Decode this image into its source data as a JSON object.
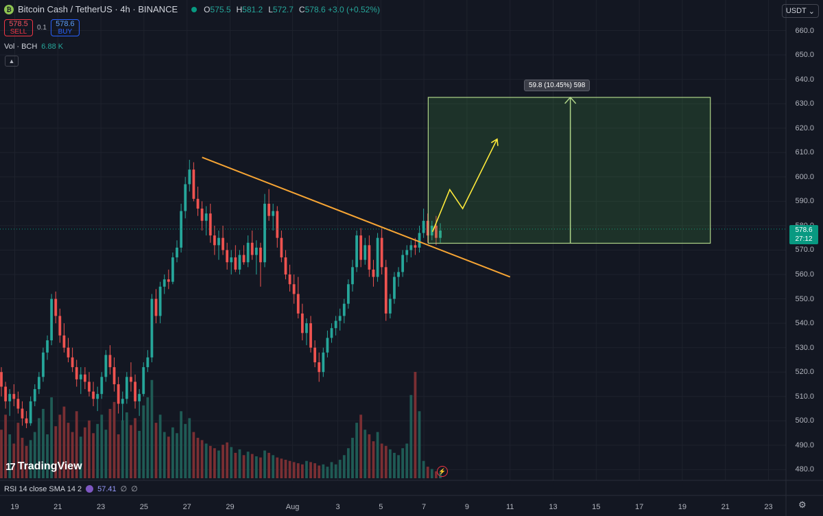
{
  "header": {
    "symbol": "Bitcoin Cash / TetherUS · 4h · BINANCE",
    "ohlc": [
      {
        "k": "O",
        "v": "575.5"
      },
      {
        "k": "H",
        "v": "581.2"
      },
      {
        "k": "L",
        "v": "572.7"
      },
      {
        "k": "C",
        "v": "578.6 +3.0 (+0.52%)"
      }
    ]
  },
  "trade": {
    "sell_price": "578.5",
    "sell_label": "SELL",
    "spread": "0.1",
    "buy_price": "578.6",
    "buy_label": "BUY"
  },
  "volume": {
    "label": "Vol · BCH",
    "value": "6.88 K"
  },
  "currency": "USDT",
  "price_tag": {
    "price": "578.6",
    "countdown": "27:12"
  },
  "measure_label": "59.8 (10.45%) 598",
  "rsi": {
    "label": "RSI 14 close SMA 14 2",
    "value": "57.41",
    "na1": "∅",
    "na2": "∅"
  },
  "brand": "TradingView",
  "colors": {
    "up": "#26a69a",
    "down": "#ef5350",
    "trendline": "#f7a534",
    "target_zone": "#b0d589",
    "projection": "#ffeb3b",
    "background": "#131722"
  },
  "chart_data": {
    "type": "candlestick",
    "title": "Bitcoin Cash / TetherUS · 4h · BINANCE",
    "y_axis": {
      "labels": [
        "660.0",
        "650.0",
        "640.0",
        "630.0",
        "620.0",
        "610.0",
        "600.0",
        "590.0",
        "580.0",
        "570.0",
        "560.0",
        "550.0",
        "540.0",
        "530.0",
        "520.0",
        "510.0",
        "500.0",
        "490.0",
        "480.0"
      ],
      "range": [
        478,
        664
      ]
    },
    "x_axis": {
      "labels": [
        "19",
        "21",
        "23",
        "25",
        "27",
        "29",
        "Aug",
        "3",
        "5",
        "7",
        "9",
        "11",
        "13",
        "15",
        "17",
        "19",
        "21",
        "23"
      ]
    },
    "candles": [
      [
        520,
        522,
        510,
        514
      ],
      [
        514,
        516,
        505,
        508
      ],
      [
        508,
        513,
        502,
        511
      ],
      [
        511,
        515,
        506,
        509
      ],
      [
        509,
        512,
        503,
        505
      ],
      [
        505,
        508,
        498,
        501
      ],
      [
        501,
        504,
        497,
        499
      ],
      [
        499,
        510,
        498,
        508
      ],
      [
        508,
        515,
        506,
        513
      ],
      [
        513,
        520,
        511,
        518
      ],
      [
        518,
        530,
        516,
        528
      ],
      [
        528,
        535,
        525,
        533
      ],
      [
        533,
        552,
        531,
        550
      ],
      [
        550,
        553,
        540,
        543
      ],
      [
        543,
        546,
        532,
        535
      ],
      [
        535,
        540,
        528,
        530
      ],
      [
        530,
        534,
        524,
        526
      ],
      [
        526,
        530,
        520,
        522
      ],
      [
        522,
        525,
        514,
        517
      ],
      [
        517,
        522,
        511,
        519
      ],
      [
        519,
        522,
        513,
        516
      ],
      [
        516,
        520,
        510,
        512
      ],
      [
        512,
        516,
        506,
        509
      ],
      [
        509,
        514,
        504,
        511
      ],
      [
        511,
        520,
        509,
        518
      ],
      [
        518,
        529,
        516,
        527
      ],
      [
        527,
        531,
        519,
        522
      ],
      [
        522,
        526,
        512,
        515
      ],
      [
        515,
        518,
        503,
        507
      ],
      [
        507,
        512,
        500,
        509
      ],
      [
        509,
        520,
        507,
        518
      ],
      [
        518,
        524,
        512,
        516
      ],
      [
        516,
        519,
        505,
        508
      ],
      [
        508,
        513,
        502,
        511
      ],
      [
        511,
        524,
        510,
        522
      ],
      [
        522,
        529,
        520,
        526
      ],
      [
        526,
        552,
        524,
        550
      ],
      [
        550,
        554,
        540,
        543
      ],
      [
        543,
        557,
        540,
        555
      ],
      [
        555,
        560,
        552,
        558
      ],
      [
        558,
        562,
        554,
        557
      ],
      [
        557,
        569,
        556,
        567
      ],
      [
        567,
        574,
        565,
        571
      ],
      [
        571,
        589,
        569,
        586
      ],
      [
        586,
        600,
        583,
        597
      ],
      [
        597,
        607,
        594,
        603
      ],
      [
        603,
        606,
        590,
        591
      ],
      [
        591,
        596,
        584,
        587
      ],
      [
        587,
        590,
        578,
        582
      ],
      [
        582,
        588,
        576,
        585
      ],
      [
        585,
        589,
        573,
        576
      ],
      [
        576,
        580,
        568,
        572
      ],
      [
        572,
        578,
        566,
        575
      ],
      [
        575,
        580,
        568,
        570
      ],
      [
        570,
        573,
        562,
        565
      ],
      [
        565,
        570,
        560,
        567
      ],
      [
        567,
        572,
        561,
        562
      ],
      [
        562,
        570,
        560,
        568
      ],
      [
        568,
        572,
        564,
        565
      ],
      [
        565,
        576,
        563,
        573
      ],
      [
        573,
        578,
        566,
        568
      ],
      [
        568,
        574,
        560,
        571
      ],
      [
        571,
        573,
        555,
        565
      ],
      [
        565,
        593,
        563,
        589
      ],
      [
        589,
        595,
        582,
        584
      ],
      [
        584,
        589,
        578,
        586
      ],
      [
        586,
        588,
        571,
        575
      ],
      [
        575,
        578,
        565,
        567
      ],
      [
        567,
        570,
        558,
        560
      ],
      [
        560,
        564,
        553,
        556
      ],
      [
        556,
        560,
        548,
        552
      ],
      [
        552,
        559,
        542,
        544
      ],
      [
        544,
        548,
        533,
        536
      ],
      [
        536,
        542,
        531,
        540
      ],
      [
        540,
        543,
        528,
        530
      ],
      [
        530,
        533,
        522,
        524
      ],
      [
        524,
        528,
        516,
        520
      ],
      [
        520,
        530,
        518,
        528
      ],
      [
        528,
        537,
        526,
        534
      ],
      [
        534,
        540,
        532,
        538
      ],
      [
        538,
        543,
        535,
        541
      ],
      [
        541,
        546,
        537,
        543
      ],
      [
        543,
        550,
        540,
        548
      ],
      [
        548,
        558,
        546,
        556
      ],
      [
        556,
        566,
        553,
        563
      ],
      [
        563,
        578,
        561,
        576
      ],
      [
        576,
        579,
        563,
        566
      ],
      [
        566,
        575,
        564,
        572
      ],
      [
        572,
        576,
        559,
        562
      ],
      [
        562,
        566,
        555,
        559
      ],
      [
        559,
        577,
        557,
        575
      ],
      [
        575,
        579,
        560,
        563
      ],
      [
        563,
        566,
        541,
        544
      ],
      [
        544,
        552,
        542,
        550
      ],
      [
        550,
        561,
        548,
        559
      ],
      [
        559,
        563,
        555,
        561
      ],
      [
        561,
        570,
        559,
        568
      ],
      [
        568,
        572,
        565,
        570
      ],
      [
        570,
        574,
        567,
        572
      ],
      [
        572,
        575,
        568,
        571
      ],
      [
        571,
        580,
        569,
        577
      ],
      [
        577,
        587,
        575,
        582
      ],
      [
        582,
        585,
        573,
        576
      ],
      [
        576,
        582,
        574,
        580
      ],
      [
        580,
        584,
        572,
        575
      ],
      [
        575,
        581,
        573,
        578
      ]
    ],
    "volume": [
      42,
      55,
      38,
      30,
      48,
      35,
      28,
      33,
      40,
      52,
      60,
      38,
      70,
      45,
      55,
      62,
      48,
      40,
      58,
      36,
      44,
      50,
      39,
      47,
      55,
      42,
      60,
      66,
      38,
      50,
      57,
      46,
      52,
      41,
      63,
      70,
      85,
      48,
      55,
      40,
      36,
      44,
      39,
      58,
      47,
      52,
      40,
      35,
      33,
      30,
      28,
      26,
      24,
      29,
      31,
      27,
      22,
      25,
      20,
      23,
      21,
      19,
      18,
      24,
      22,
      20,
      18,
      17,
      16,
      15,
      14,
      13,
      12,
      15,
      14,
      13,
      11,
      12,
      10,
      14,
      12,
      16,
      20,
      26,
      35,
      48,
      55,
      42,
      38,
      32,
      40,
      30,
      28,
      25,
      22,
      20,
      26,
      30,
      72,
      92,
      58,
      15,
      10,
      8,
      6,
      5
    ],
    "trendline": [
      [
        27.7,
        608.0
      ],
      [
        11.0,
        559.0
      ]
    ],
    "target_zone": {
      "from_date": 7.2,
      "to_date": 20.3,
      "low": 572.8,
      "high": 632.6
    },
    "projection": [
      [
        7.4,
        577.5
      ],
      [
        8.2,
        594.8
      ],
      [
        8.8,
        587.0
      ],
      [
        10.4,
        615.5
      ]
    ],
    "measure": {
      "date": 13.8,
      "from": 572.8,
      "to": 632.6
    }
  }
}
